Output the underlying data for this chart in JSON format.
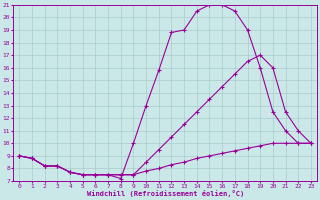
{
  "xlabel": "Windchill (Refroidissement éolien,°C)",
  "bg_color": "#cbe8e8",
  "grid_color": "#aacccc",
  "line_color": "#990099",
  "xlim": [
    -0.5,
    23.5
  ],
  "ylim": [
    7,
    21
  ],
  "xticks": [
    0,
    1,
    2,
    3,
    4,
    5,
    6,
    7,
    8,
    9,
    10,
    11,
    12,
    13,
    14,
    15,
    16,
    17,
    18,
    19,
    20,
    21,
    22,
    23
  ],
  "yticks": [
    7,
    8,
    9,
    10,
    11,
    12,
    13,
    14,
    15,
    16,
    17,
    18,
    19,
    20,
    21
  ],
  "line1_x": [
    0,
    1,
    2,
    3,
    4,
    5,
    6,
    7,
    8,
    9,
    10,
    11,
    12,
    13,
    14,
    15,
    16,
    17,
    18,
    19,
    20,
    21,
    22,
    23
  ],
  "line1_y": [
    9.0,
    8.8,
    8.2,
    8.2,
    7.7,
    7.5,
    7.5,
    7.5,
    7.2,
    10.0,
    13.0,
    15.8,
    18.8,
    19.0,
    20.5,
    21.0,
    21.0,
    20.5,
    19.0,
    16.0,
    12.5,
    11.0,
    10.0,
    10.0
  ],
  "line2_x": [
    0,
    1,
    2,
    3,
    4,
    5,
    6,
    7,
    8,
    9,
    10,
    11,
    12,
    13,
    14,
    15,
    16,
    17,
    18,
    19,
    20,
    21,
    22,
    23
  ],
  "line2_y": [
    9.0,
    8.8,
    8.2,
    8.2,
    7.7,
    7.5,
    7.5,
    7.5,
    7.5,
    7.5,
    8.5,
    9.5,
    10.5,
    11.5,
    12.5,
    13.5,
    14.5,
    15.5,
    16.5,
    17.0,
    16.0,
    12.5,
    11.0,
    10.0
  ],
  "line3_x": [
    0,
    1,
    2,
    3,
    4,
    5,
    6,
    7,
    8,
    9,
    10,
    11,
    12,
    13,
    14,
    15,
    16,
    17,
    18,
    19,
    20,
    21,
    22,
    23
  ],
  "line3_y": [
    9.0,
    8.8,
    8.2,
    8.2,
    7.7,
    7.5,
    7.5,
    7.5,
    7.5,
    7.5,
    7.8,
    8.0,
    8.3,
    8.5,
    8.8,
    9.0,
    9.2,
    9.4,
    9.6,
    9.8,
    10.0,
    10.0,
    10.0,
    10.0
  ]
}
